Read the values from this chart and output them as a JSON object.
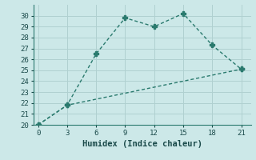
{
  "line1_x": [
    0,
    3,
    6,
    9,
    12,
    15,
    18,
    21
  ],
  "line1_y": [
    20.0,
    21.8,
    26.5,
    29.8,
    29.0,
    30.2,
    27.3,
    25.1
  ],
  "line2_x": [
    0,
    3,
    21
  ],
  "line2_y": [
    20.0,
    21.8,
    25.1
  ],
  "line_color": "#2a7a6e",
  "bg_color": "#cce8e8",
  "grid_color": "#b0d0d0",
  "xlabel": "Humidex (Indice chaleur)",
  "xlim": [
    -0.5,
    22
  ],
  "ylim": [
    20,
    31
  ],
  "xticks": [
    0,
    3,
    6,
    9,
    12,
    15,
    18,
    21
  ],
  "yticks": [
    20,
    21,
    22,
    23,
    24,
    25,
    26,
    27,
    28,
    29,
    30
  ],
  "font_color": "#1a4a4a",
  "marker": "P",
  "markersize": 4,
  "linewidth": 1.0,
  "tick_fontsize": 6.5,
  "xlabel_fontsize": 7.5
}
